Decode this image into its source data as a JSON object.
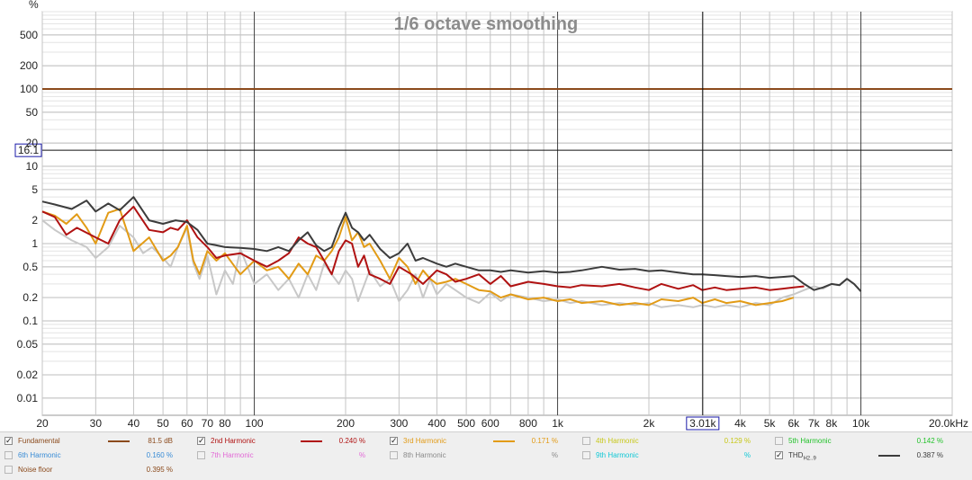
{
  "chart_data": {
    "type": "line",
    "title": "1/6 octave smoothing",
    "ylabel": "%",
    "xunit_label": "20.0kHz",
    "y_scale": "log",
    "x_scale": "log",
    "ylim": [
      0.006,
      1000
    ],
    "xlim": [
      20,
      20000
    ],
    "y_ticks": [
      {
        "v": 500,
        "label": "500"
      },
      {
        "v": 200,
        "label": "200"
      },
      {
        "v": 100,
        "label": "100"
      },
      {
        "v": 50,
        "label": "50"
      },
      {
        "v": 20,
        "label": "20"
      },
      {
        "v": 10,
        "label": "10"
      },
      {
        "v": 5,
        "label": "5"
      },
      {
        "v": 2,
        "label": "2"
      },
      {
        "v": 1,
        "label": "1"
      },
      {
        "v": 0.5,
        "label": "0.5"
      },
      {
        "v": 0.2,
        "label": "0.2"
      },
      {
        "v": 0.1,
        "label": "0.1"
      },
      {
        "v": 0.05,
        "label": "0.05"
      },
      {
        "v": 0.02,
        "label": "0.02"
      },
      {
        "v": 0.01,
        "label": "0.01"
      }
    ],
    "x_ticks": [
      {
        "v": 20,
        "label": "20"
      },
      {
        "v": 30,
        "label": "30"
      },
      {
        "v": 40,
        "label": "40"
      },
      {
        "v": 50,
        "label": "50"
      },
      {
        "v": 60,
        "label": "60"
      },
      {
        "v": 70,
        "label": "70"
      },
      {
        "v": 80,
        "label": "80"
      },
      {
        "v": 100,
        "label": "100"
      },
      {
        "v": 200,
        "label": "200"
      },
      {
        "v": 300,
        "label": "300"
      },
      {
        "v": 400,
        "label": "400"
      },
      {
        "v": 500,
        "label": "500"
      },
      {
        "v": 600,
        "label": "600"
      },
      {
        "v": 800,
        "label": "800"
      },
      {
        "v": 1000,
        "label": "1k"
      },
      {
        "v": 2000,
        "label": "2k"
      },
      {
        "v": 4000,
        "label": "4k"
      },
      {
        "v": 5000,
        "label": "5k"
      },
      {
        "v": 6000,
        "label": "6k"
      },
      {
        "v": 7000,
        "label": "7k"
      },
      {
        "v": 8000,
        "label": "8k"
      },
      {
        "v": 10000,
        "label": "10k"
      }
    ],
    "cursor": {
      "x": 3010,
      "x_label": "3.01k",
      "y": 16.1,
      "y_label": "16.1"
    },
    "series": [
      {
        "name": "Fundamental",
        "color": "#8b4a1c",
        "x": [
          20,
          20000
        ],
        "y": [
          100,
          100
        ]
      },
      {
        "name": "Noise floor",
        "color": "#c8c8c8",
        "x": [
          20,
          22,
          25,
          28,
          30,
          33,
          36,
          40,
          43,
          46,
          50,
          53,
          56,
          60,
          63,
          66,
          70,
          75,
          80,
          85,
          90,
          95,
          100,
          110,
          120,
          130,
          140,
          150,
          160,
          170,
          180,
          190,
          200,
          210,
          220,
          240,
          260,
          280,
          300,
          320,
          340,
          360,
          380,
          400,
          430,
          460,
          500,
          550,
          600,
          650,
          700,
          800,
          900,
          1000,
          1100,
          1200,
          1400,
          1600,
          1800,
          2000,
          2200,
          2500,
          2800,
          3000,
          3300,
          3600,
          4000,
          4500,
          5000,
          5500,
          6000,
          6500,
          7000,
          7500,
          8000,
          8500,
          9000,
          9500,
          10000
        ],
        "y": [
          2.0,
          1.5,
          1.1,
          0.9,
          0.65,
          0.9,
          1.7,
          1.2,
          0.75,
          0.9,
          0.65,
          0.5,
          0.9,
          1.6,
          0.55,
          0.35,
          0.7,
          0.22,
          0.45,
          0.3,
          0.85,
          0.5,
          0.3,
          0.4,
          0.25,
          0.35,
          0.2,
          0.4,
          0.25,
          0.55,
          0.4,
          0.3,
          0.45,
          0.35,
          0.18,
          0.45,
          0.28,
          0.35,
          0.18,
          0.25,
          0.4,
          0.2,
          0.35,
          0.22,
          0.3,
          0.25,
          0.2,
          0.17,
          0.23,
          0.18,
          0.22,
          0.2,
          0.18,
          0.19,
          0.17,
          0.18,
          0.16,
          0.17,
          0.16,
          0.17,
          0.15,
          0.16,
          0.15,
          0.16,
          0.15,
          0.16,
          0.15,
          0.17,
          0.16,
          0.2,
          0.22,
          0.25,
          0.28,
          0.26,
          0.3,
          0.29,
          0.35,
          0.3,
          0.24
        ]
      },
      {
        "name": "3rd Harmonic",
        "color": "#e29b16",
        "x": [
          20,
          22,
          24,
          26,
          28,
          30,
          33,
          36,
          40,
          45,
          50,
          53,
          56,
          60,
          63,
          66,
          70,
          75,
          80,
          90,
          100,
          110,
          120,
          130,
          140,
          150,
          160,
          170,
          180,
          190,
          200,
          210,
          220,
          230,
          240,
          260,
          280,
          300,
          320,
          340,
          360,
          380,
          400,
          430,
          460,
          500,
          550,
          600,
          650,
          700,
          800,
          900,
          1000,
          1100,
          1200,
          1400,
          1600,
          1800,
          2000,
          2200,
          2500,
          2800,
          3000,
          3300,
          3600,
          4000,
          4500,
          5000,
          5500,
          6000
        ],
        "y": [
          2.6,
          2.3,
          1.8,
          2.4,
          1.6,
          1.0,
          2.5,
          2.8,
          0.8,
          1.2,
          0.6,
          0.7,
          0.9,
          1.7,
          0.6,
          0.4,
          0.8,
          0.6,
          0.75,
          0.4,
          0.6,
          0.45,
          0.5,
          0.35,
          0.55,
          0.4,
          0.7,
          0.6,
          0.8,
          1.2,
          2.2,
          1.1,
          1.4,
          0.9,
          1.0,
          0.6,
          0.35,
          0.65,
          0.5,
          0.3,
          0.45,
          0.35,
          0.3,
          0.32,
          0.35,
          0.3,
          0.25,
          0.24,
          0.2,
          0.22,
          0.19,
          0.2,
          0.18,
          0.19,
          0.17,
          0.18,
          0.16,
          0.17,
          0.16,
          0.19,
          0.18,
          0.2,
          0.17,
          0.19,
          0.17,
          0.18,
          0.16,
          0.17,
          0.18,
          0.2
        ]
      },
      {
        "name": "2nd Harmonic",
        "color": "#b01212",
        "x": [
          20,
          22,
          24,
          26,
          30,
          33,
          36,
          40,
          45,
          50,
          53,
          56,
          60,
          65,
          70,
          75,
          80,
          90,
          100,
          110,
          120,
          130,
          140,
          150,
          160,
          170,
          180,
          190,
          200,
          210,
          220,
          230,
          240,
          260,
          280,
          300,
          330,
          360,
          400,
          430,
          460,
          500,
          550,
          600,
          650,
          700,
          800,
          900,
          1000,
          1100,
          1200,
          1400,
          1600,
          1800,
          2000,
          2200,
          2500,
          2800,
          3000,
          3300,
          3600,
          4000,
          4500,
          5000,
          5500,
          6000,
          6500
        ],
        "y": [
          2.6,
          2.2,
          1.3,
          1.6,
          1.2,
          1.0,
          2.0,
          3.0,
          1.5,
          1.4,
          1.6,
          1.5,
          2.0,
          1.2,
          0.9,
          0.65,
          0.7,
          0.75,
          0.6,
          0.5,
          0.6,
          0.75,
          1.2,
          1.0,
          0.9,
          0.6,
          0.4,
          0.8,
          1.1,
          1.0,
          0.5,
          0.7,
          0.4,
          0.35,
          0.3,
          0.5,
          0.4,
          0.3,
          0.45,
          0.4,
          0.32,
          0.35,
          0.4,
          0.3,
          0.38,
          0.28,
          0.32,
          0.3,
          0.28,
          0.27,
          0.29,
          0.28,
          0.3,
          0.27,
          0.25,
          0.3,
          0.26,
          0.29,
          0.25,
          0.27,
          0.25,
          0.26,
          0.27,
          0.25,
          0.26,
          0.27,
          0.28
        ]
      },
      {
        "name": "THD H2..9",
        "color": "#3c3c3c",
        "x": [
          20,
          22,
          25,
          28,
          30,
          33,
          36,
          40,
          45,
          50,
          55,
          60,
          65,
          70,
          75,
          80,
          90,
          100,
          110,
          120,
          130,
          140,
          150,
          160,
          170,
          180,
          190,
          200,
          210,
          220,
          230,
          240,
          260,
          280,
          300,
          320,
          340,
          360,
          400,
          430,
          460,
          500,
          550,
          600,
          650,
          700,
          800,
          900,
          1000,
          1100,
          1200,
          1400,
          1600,
          1800,
          2000,
          2200,
          2500,
          2800,
          3000,
          3300,
          3600,
          4000,
          4500,
          5000,
          5500,
          6000,
          6500,
          7000,
          7500,
          8000,
          8500,
          9000,
          9500,
          10000
        ],
        "y": [
          3.5,
          3.2,
          2.8,
          3.6,
          2.6,
          3.3,
          2.7,
          4.0,
          2.0,
          1.8,
          2.0,
          1.9,
          1.5,
          1.0,
          0.95,
          0.9,
          0.88,
          0.85,
          0.8,
          0.9,
          0.8,
          1.1,
          1.4,
          0.95,
          0.8,
          0.9,
          1.6,
          2.5,
          1.6,
          1.4,
          1.1,
          1.3,
          0.85,
          0.65,
          0.75,
          1.0,
          0.6,
          0.65,
          0.55,
          0.5,
          0.55,
          0.5,
          0.45,
          0.45,
          0.43,
          0.45,
          0.42,
          0.44,
          0.42,
          0.43,
          0.45,
          0.5,
          0.46,
          0.47,
          0.44,
          0.45,
          0.42,
          0.4,
          0.4,
          0.39,
          0.38,
          0.37,
          0.38,
          0.36,
          0.37,
          0.38,
          0.3,
          0.25,
          0.27,
          0.3,
          0.29,
          0.35,
          0.3,
          0.24
        ]
      }
    ]
  },
  "legend": {
    "row1": [
      {
        "label": "Fundamental",
        "value": "81.5 dB",
        "checked": true,
        "color": "#8b4a1c",
        "line": "#8b4a1c"
      },
      {
        "label": "2nd Harmonic",
        "value": "0.240 %",
        "checked": true,
        "color": "#b01212",
        "line": "#b01212"
      },
      {
        "label": "3rd Harmonic",
        "value": "0.171 %",
        "checked": true,
        "color": "#e29b16",
        "line": "#e29b16"
      },
      {
        "label": "4th Harmonic",
        "value": "0.129 %",
        "checked": false,
        "color": "#c8c81a"
      },
      {
        "label": "5th Harmonic",
        "value": "0.142 %",
        "checked": false,
        "color": "#22c22a"
      }
    ],
    "row2": [
      {
        "label": "6th Harmonic",
        "value": "0.160 %",
        "checked": false,
        "color": "#3a8cd6"
      },
      {
        "label": "7th Harmonic",
        "value": "%",
        "checked": false,
        "color": "#e26ad6"
      },
      {
        "label": "8th Harmonic",
        "value": "%",
        "checked": false,
        "color": "#8a8a8a"
      },
      {
        "label": "9th Harmonic",
        "value": "%",
        "checked": false,
        "color": "#12c8d6"
      },
      {
        "label": "THD",
        "sub": "H2..9",
        "value": "0.387 %",
        "checked": true,
        "color": "#3c3c3c",
        "line": "#3c3c3c"
      }
    ],
    "row3": [
      {
        "label": "Noise floor",
        "value": "0.395 %",
        "checked": false,
        "color": "#8b4a1c"
      }
    ]
  }
}
